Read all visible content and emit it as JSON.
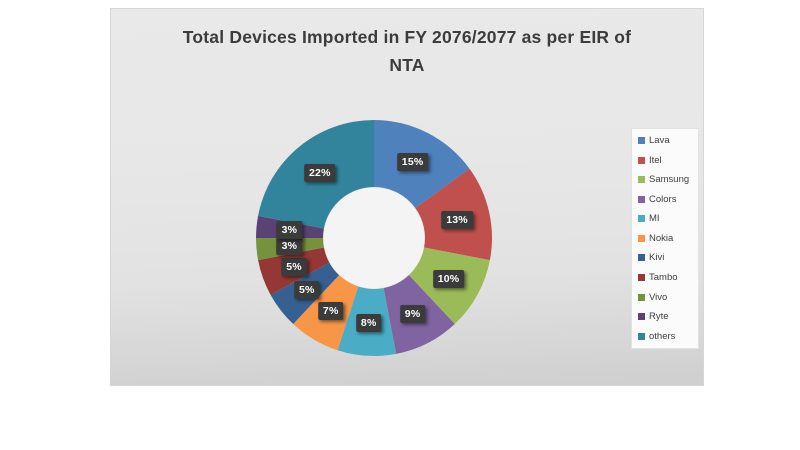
{
  "window": {
    "description": "Presentation slide with donut chart"
  },
  "chart_data": {
    "type": "pie",
    "subtype": "donut",
    "title": "Total Devices Imported in FY 2076/2077 as per EIR of NTA",
    "title_line1": "Total Devices Imported in FY 2076/2077 as per EIR of",
    "title_line2": "NTA",
    "legend_position": "right",
    "categories": [
      "Lava",
      "Itel",
      "Samsung",
      "Colors",
      "MI",
      "Nokia",
      "Kivi",
      "Tambo",
      "Vivo",
      "Ryte",
      "others"
    ],
    "values": [
      15,
      13,
      10,
      9,
      8,
      7,
      5,
      5,
      3,
      3,
      22
    ],
    "data_labels": [
      "15%",
      "13%",
      "10%",
      "9%",
      "8%",
      "7%",
      "5%",
      "5%",
      "3%",
      "3%",
      "22%"
    ],
    "colors": [
      "#4F81BD",
      "#C0504D",
      "#9BBB59",
      "#8064A2",
      "#4BACC6",
      "#F79646",
      "#366092",
      "#953734",
      "#76923C",
      "#5A4374",
      "#31849B"
    ],
    "donut_hole_ratio": 0.43,
    "style": {
      "label_badge_bg": "#3B3B3B",
      "label_badge_text": "#FFFFFF",
      "title_color": "#3C3C3C",
      "legend_text_color": "#3F3F3F",
      "hole_color": "#F4F4F4",
      "panel_bg_top": "#E9E9E9",
      "panel_bg_bottom": "#CFCFCF"
    }
  }
}
